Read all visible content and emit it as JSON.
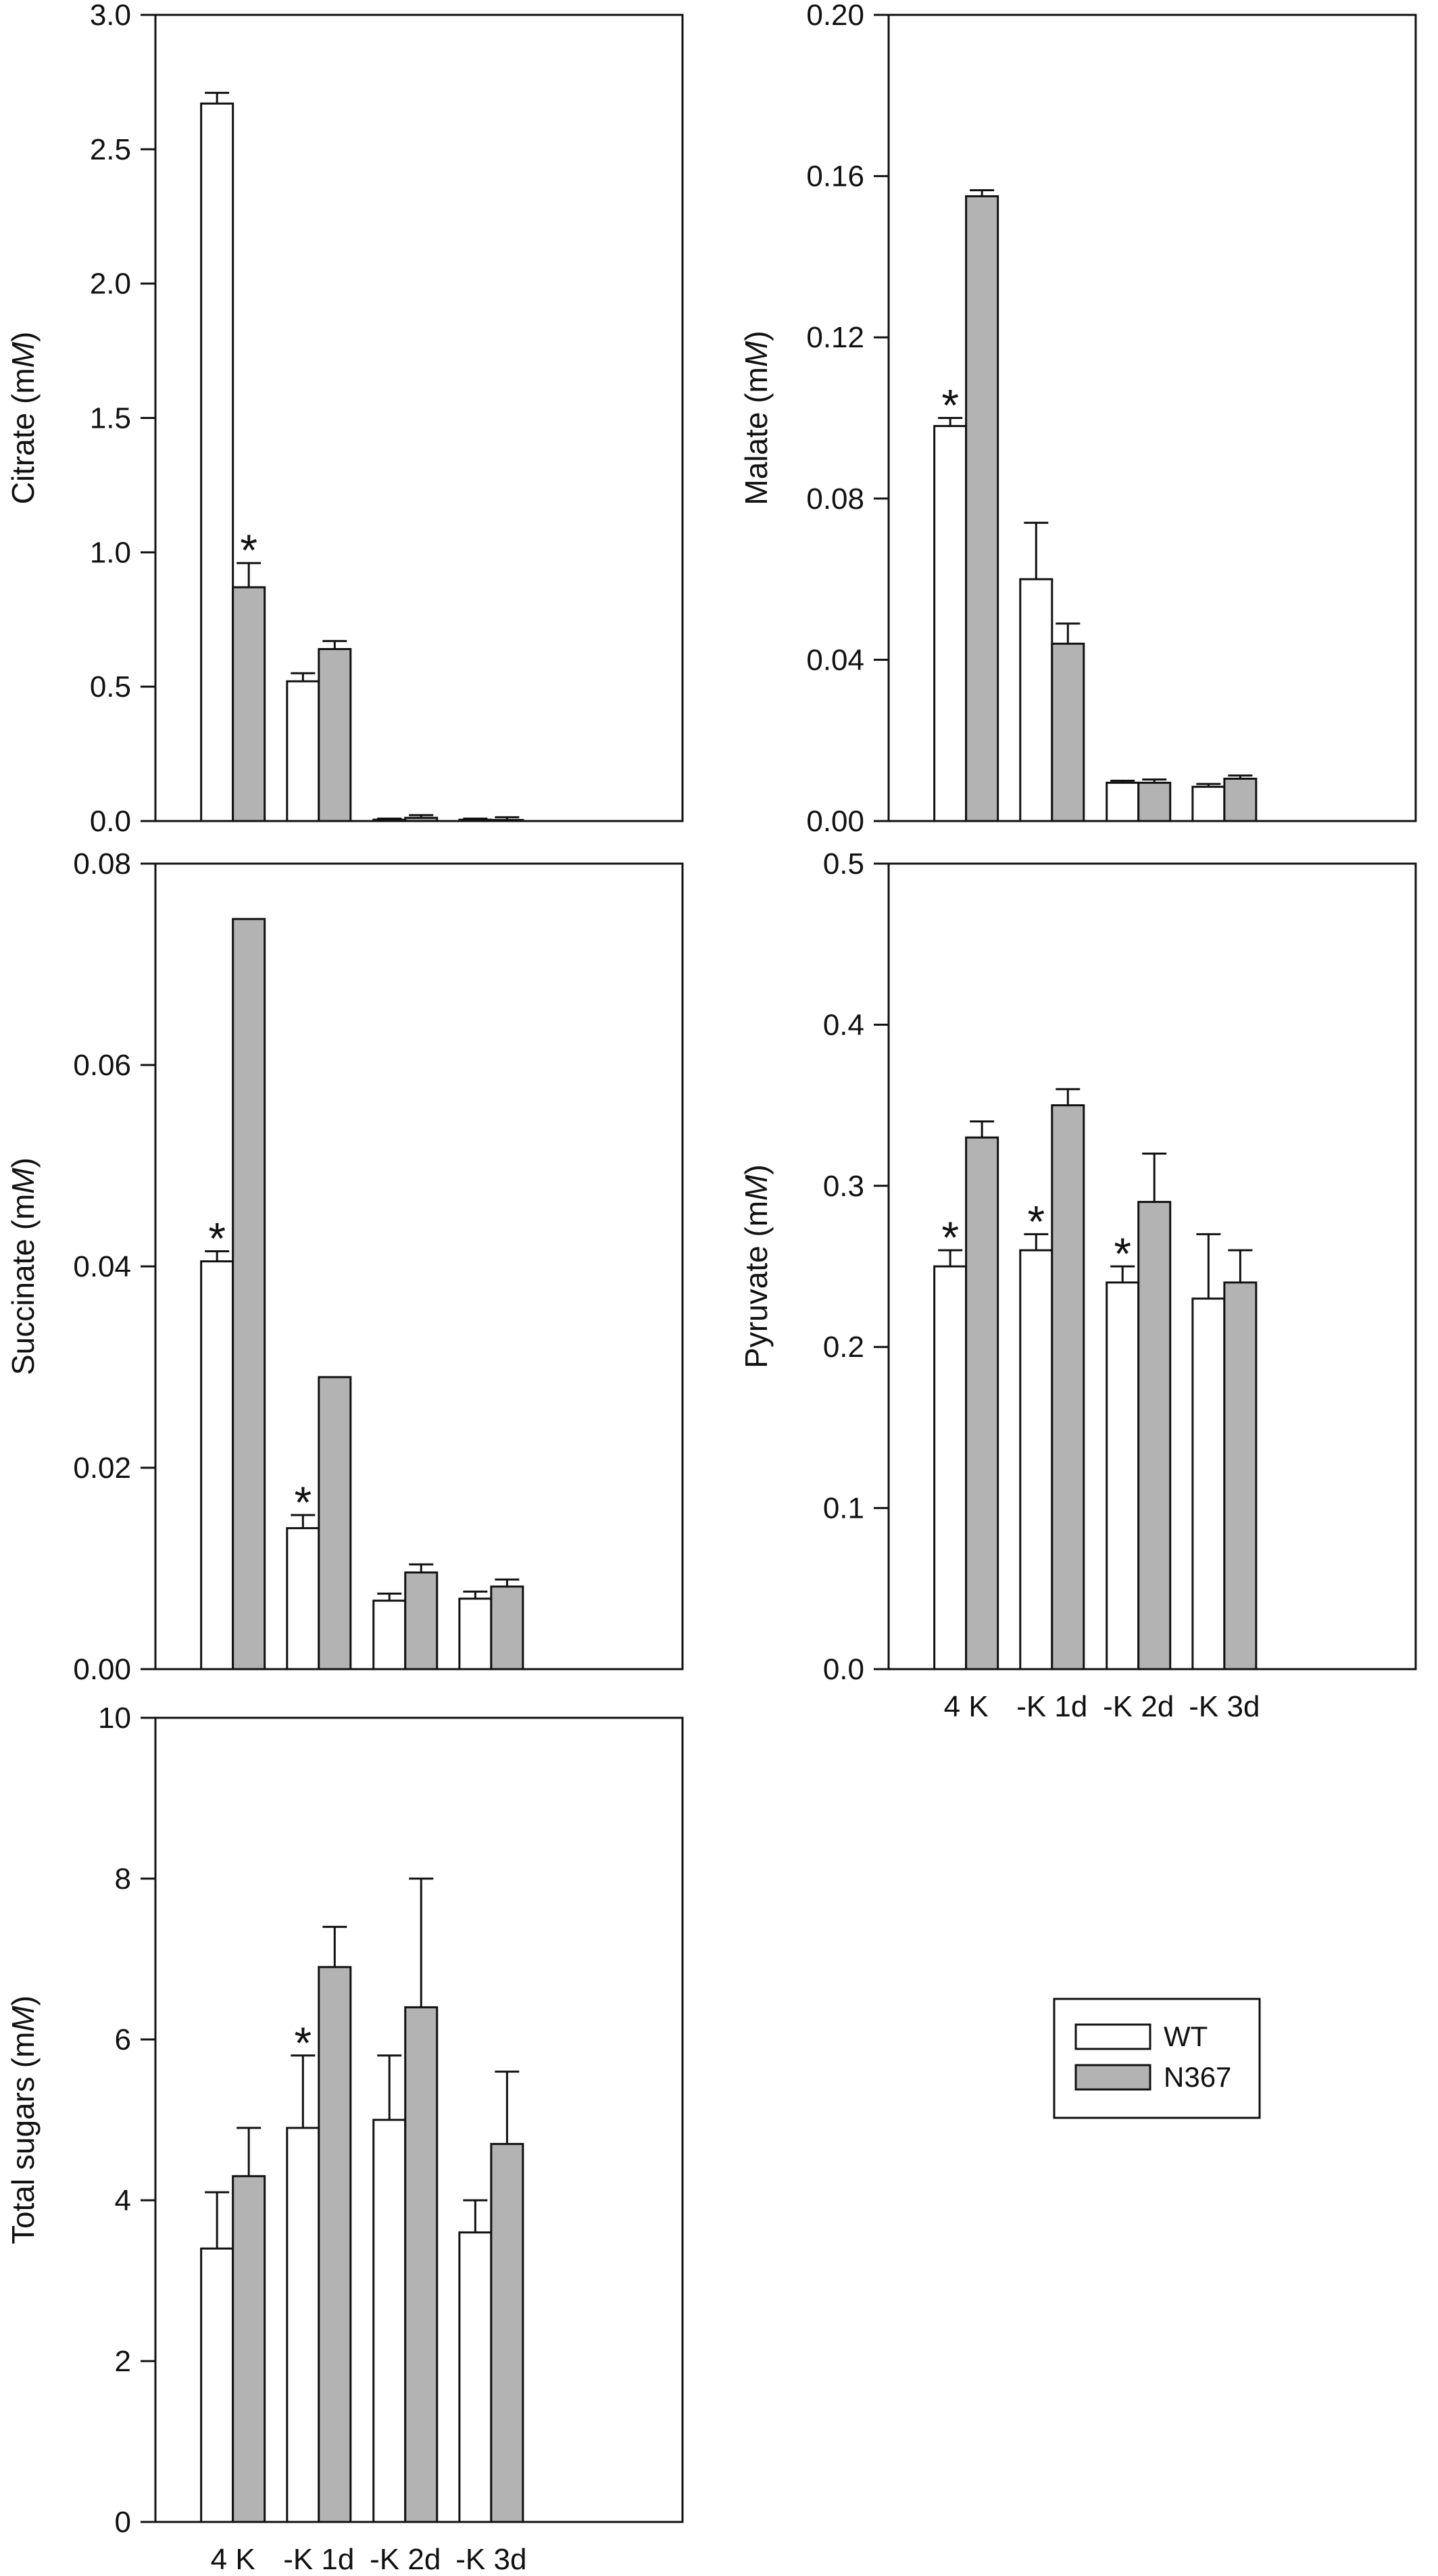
{
  "legend": {
    "items": [
      {
        "label": "WT",
        "color": "#ffffff"
      },
      {
        "label": "N367",
        "color": "#b3b3b3"
      }
    ]
  },
  "colors": {
    "wt": "#ffffff",
    "n367": "#b3b3b3",
    "stroke": "#111111"
  },
  "significance_marker": "*",
  "chart_data": [
    {
      "type": "bar",
      "ylabel": "Citrate (mM)",
      "ylabel_prefix": "Citrate (m",
      "ylabel_italic": "M",
      "ylabel_suffix": ")",
      "categories": [
        "4 K",
        "-K 1d",
        "-K 2d",
        "-K 3d"
      ],
      "show_xticklabels": false,
      "ylim": [
        0,
        3.0
      ],
      "yticks": [
        "0.0",
        "0.5",
        "1.0",
        "1.5",
        "2.0",
        "2.5",
        "3.0"
      ],
      "series": [
        {
          "name": "WT",
          "values": [
            2.67,
            0.52,
            0.005,
            0.005
          ],
          "errors": [
            0.04,
            0.03,
            0.004,
            0.004
          ],
          "significant": [
            false,
            false,
            false,
            false
          ]
        },
        {
          "name": "N367",
          "values": [
            0.87,
            0.64,
            0.012,
            0.004
          ],
          "errors": [
            0.09,
            0.03,
            0.01,
            0.01
          ],
          "significant": [
            true,
            false,
            false,
            false
          ]
        }
      ]
    },
    {
      "type": "bar",
      "ylabel": "Malate (mM)",
      "ylabel_prefix": "Malate (m",
      "ylabel_italic": "M",
      "ylabel_suffix": ")",
      "categories": [
        "4 K",
        "-K 1d",
        "-K 2d",
        "-K 3d"
      ],
      "show_xticklabels": false,
      "ylim": [
        0,
        0.2
      ],
      "yticks": [
        "0.00",
        "0.04",
        "0.08",
        "0.12",
        "0.16",
        "0.20"
      ],
      "series": [
        {
          "name": "WT",
          "values": [
            0.098,
            0.06,
            0.0095,
            0.0085
          ],
          "errors": [
            0.002,
            0.014,
            0.0005,
            0.0007
          ],
          "significant": [
            true,
            false,
            false,
            false
          ]
        },
        {
          "name": "N367",
          "values": [
            0.155,
            0.044,
            0.0095,
            0.0105
          ],
          "errors": [
            0.0015,
            0.005,
            0.0008,
            0.0008
          ],
          "significant": [
            false,
            false,
            false,
            false
          ]
        }
      ]
    },
    {
      "type": "bar",
      "ylabel": "Succinate (mM)",
      "ylabel_prefix": "Succinate (m",
      "ylabel_italic": "M",
      "ylabel_suffix": ")",
      "categories": [
        "4 K",
        "-K 1d",
        "-K 2d",
        "-K 3d"
      ],
      "show_xticklabels": false,
      "ylim": [
        0,
        0.08
      ],
      "yticks": [
        "0.00",
        "0.02",
        "0.04",
        "0.06",
        "0.08"
      ],
      "series": [
        {
          "name": "WT",
          "values": [
            0.0405,
            0.014,
            0.0068,
            0.007
          ],
          "errors": [
            0.001,
            0.0013,
            0.0007,
            0.0007
          ],
          "significant": [
            true,
            true,
            false,
            false
          ]
        },
        {
          "name": "N367",
          "values": [
            0.0745,
            0.029,
            0.0096,
            0.0082
          ],
          "errors": [
            0,
            0,
            0.0008,
            0.0007
          ],
          "significant": [
            false,
            false,
            false,
            false
          ]
        }
      ]
    },
    {
      "type": "bar",
      "ylabel": "Pyruvate (mM)",
      "ylabel_prefix": "Pyruvate (m",
      "ylabel_italic": "M",
      "ylabel_suffix": ")",
      "categories": [
        "4 K",
        "-K 1d",
        "-K 2d",
        "-K 3d"
      ],
      "show_xticklabels": true,
      "ylim": [
        0,
        0.5
      ],
      "yticks": [
        "0.0",
        "0.1",
        "0.2",
        "0.3",
        "0.4",
        "0.5"
      ],
      "series": [
        {
          "name": "WT",
          "values": [
            0.25,
            0.26,
            0.24,
            0.23
          ],
          "errors": [
            0.01,
            0.01,
            0.01,
            0.04
          ],
          "significant": [
            true,
            true,
            true,
            false
          ]
        },
        {
          "name": "N367",
          "values": [
            0.33,
            0.35,
            0.29,
            0.24
          ],
          "errors": [
            0.01,
            0.01,
            0.03,
            0.02
          ],
          "significant": [
            false,
            false,
            false,
            false
          ]
        }
      ]
    },
    {
      "type": "bar",
      "ylabel": "Total sugars (mM)",
      "ylabel_prefix": "Total sugars (m",
      "ylabel_italic": "M",
      "ylabel_suffix": ")",
      "categories": [
        "4 K",
        "-K 1d",
        "-K 2d",
        "-K 3d"
      ],
      "show_xticklabels": true,
      "ylim": [
        0,
        10
      ],
      "yticks": [
        "0",
        "2",
        "4",
        "6",
        "8",
        "10"
      ],
      "series": [
        {
          "name": "WT",
          "values": [
            3.4,
            4.9,
            5.0,
            3.6
          ],
          "errors": [
            0.7,
            0.9,
            0.8,
            0.4
          ],
          "significant": [
            false,
            true,
            false,
            false
          ]
        },
        {
          "name": "N367",
          "values": [
            4.3,
            6.9,
            6.4,
            4.7
          ],
          "errors": [
            0.6,
            0.5,
            1.6,
            0.9
          ],
          "significant": [
            false,
            false,
            false,
            false
          ]
        }
      ]
    }
  ]
}
